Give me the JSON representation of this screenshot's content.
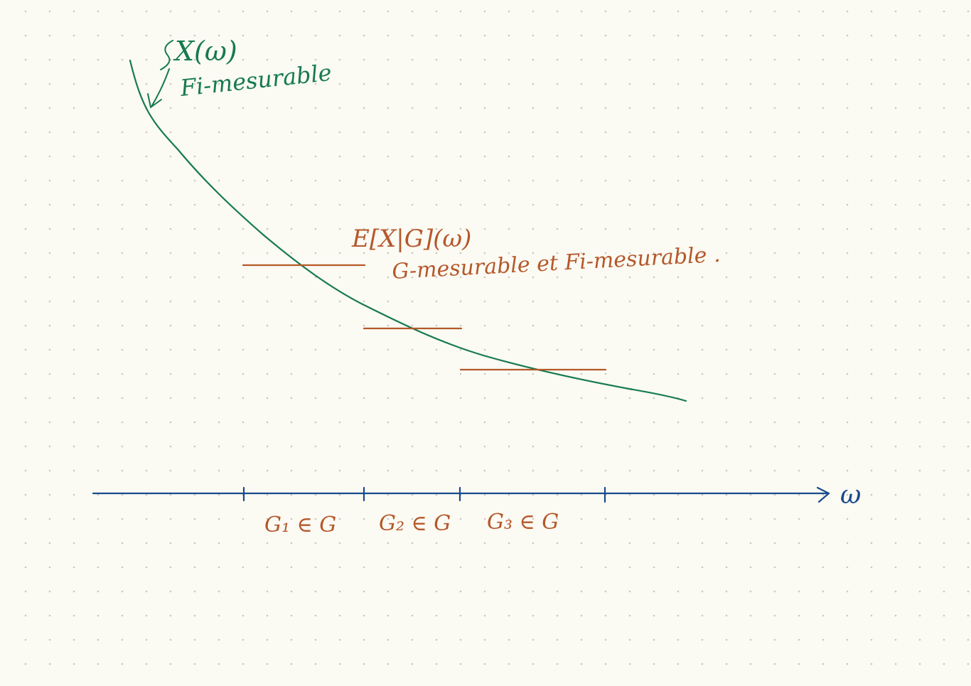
{
  "colors": {
    "paper": "#fbfaf3",
    "grid_dot": "#c9c9c2",
    "curve": "#167a4e",
    "conditional": "#b4582a",
    "axis": "#1a4a8c"
  },
  "curve": {
    "label_top": "X(ω)",
    "label_bottom": "Fi-mesurable"
  },
  "conditional": {
    "label_top": "E[X|G](ω)",
    "label_bottom": "G-mesurable et Fi-mesurable ."
  },
  "axis": {
    "label": "ω"
  },
  "partitions": [
    {
      "label": "G₁ ∈ G"
    },
    {
      "label": "G₂ ∈ G"
    },
    {
      "label": "G₃ ∈ G"
    }
  ]
}
